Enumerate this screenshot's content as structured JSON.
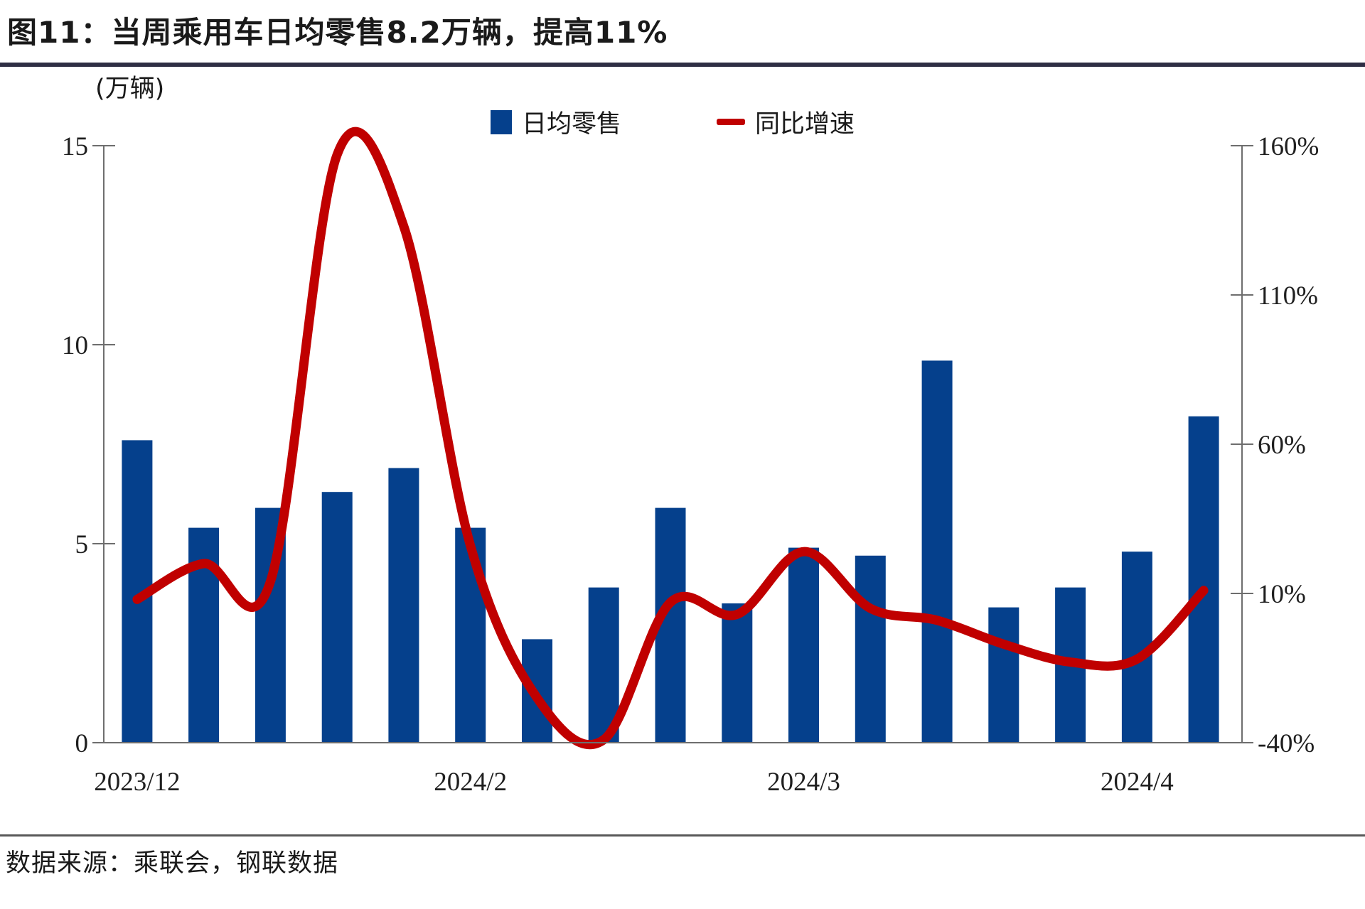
{
  "title": "图11：当周乘用车日均零售8.2万辆，提高11%",
  "unit_label": "(万辆)",
  "legend": {
    "bar_label": "日均零售",
    "line_label": "同比增速"
  },
  "source": "数据来源：乘联会，钢联数据",
  "colors": {
    "bar": "#05408c",
    "line": "#c00000",
    "axis": "#6e6e6e",
    "title_rule": "#2e2e44",
    "footer_rule": "#595959"
  },
  "chart_data": {
    "type": "bar+line",
    "title": "图11：当周乘用车日均零售8.2万辆，提高11%",
    "grid": "off",
    "legend_position": "top",
    "x_tick_labels": [
      {
        "index": 0,
        "label": "2023/12"
      },
      {
        "index": 5,
        "label": "2024/2"
      },
      {
        "index": 10,
        "label": "2024/3"
      },
      {
        "index": 15,
        "label": "2024/4"
      }
    ],
    "bar_series": {
      "name": "日均零售",
      "axis": "left",
      "unit": "万辆",
      "values": [
        7.6,
        5.4,
        5.9,
        6.3,
        6.9,
        5.4,
        2.6,
        3.9,
        5.9,
        3.5,
        4.9,
        4.7,
        9.6,
        3.4,
        3.9,
        4.8,
        8.2
      ]
    },
    "line_series": {
      "name": "同比增速",
      "axis": "right",
      "unit": "%",
      "values": [
        8,
        20,
        14,
        157,
        133,
        26,
        -25,
        -39,
        7,
        3,
        24,
        5,
        1,
        -7,
        -13,
        -12,
        11
      ]
    },
    "left_axis": {
      "min": 0,
      "max": 15,
      "ticks": [
        0,
        5,
        10,
        15
      ],
      "labels": [
        "0",
        "5",
        "10",
        "15"
      ]
    },
    "right_axis": {
      "min": -40,
      "max": 160,
      "ticks": [
        -40,
        10,
        60,
        110,
        160
      ],
      "labels": [
        "-40%",
        "10%",
        "60%",
        "110%",
        "160%"
      ]
    }
  }
}
